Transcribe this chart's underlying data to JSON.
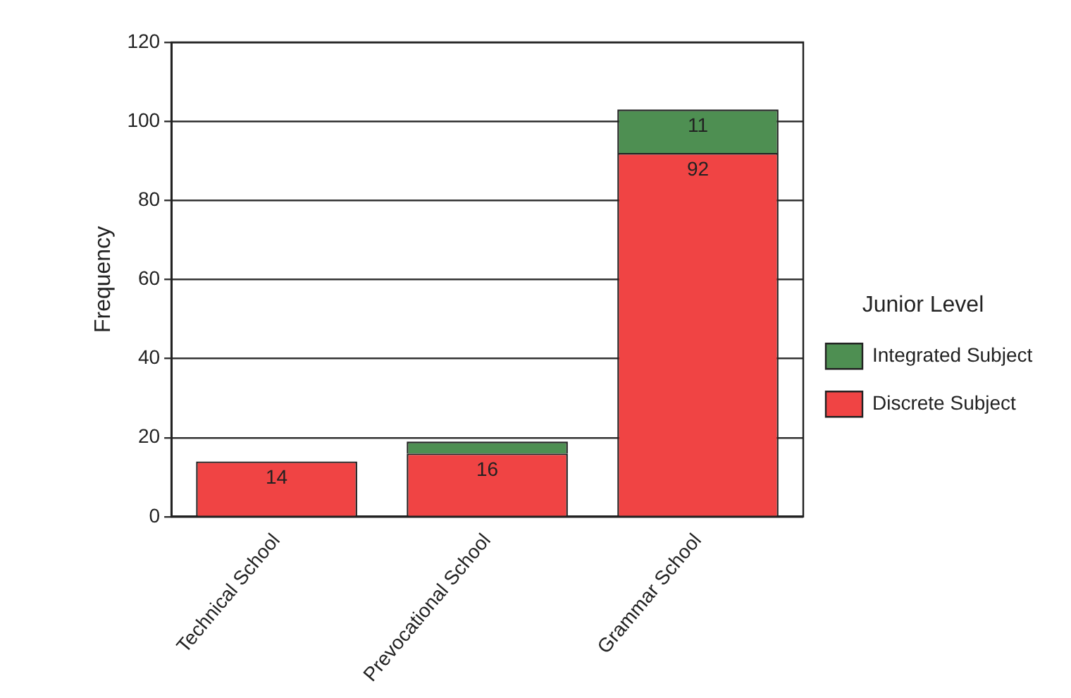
{
  "chart_data": {
    "type": "bar",
    "ylabel": "Frequency",
    "legend_title": "Junior Level",
    "categories": [
      "Technical School",
      "Prevocational School",
      "Grammar School"
    ],
    "stacked": true,
    "series": [
      {
        "name": "Discrete Subject",
        "color": "#f04444",
        "values": [
          14,
          16,
          92
        ],
        "value_labels": [
          "14",
          "16",
          "92"
        ]
      },
      {
        "name": "Integrated Subject",
        "color": "#4e8f52",
        "values": [
          null,
          3,
          11
        ],
        "value_labels": [
          null,
          null,
          "11"
        ]
      }
    ],
    "ylim": [
      0,
      120
    ],
    "yticks": [
      0,
      20,
      40,
      60,
      80,
      100,
      120
    ],
    "grid": "y",
    "legend": "right"
  }
}
